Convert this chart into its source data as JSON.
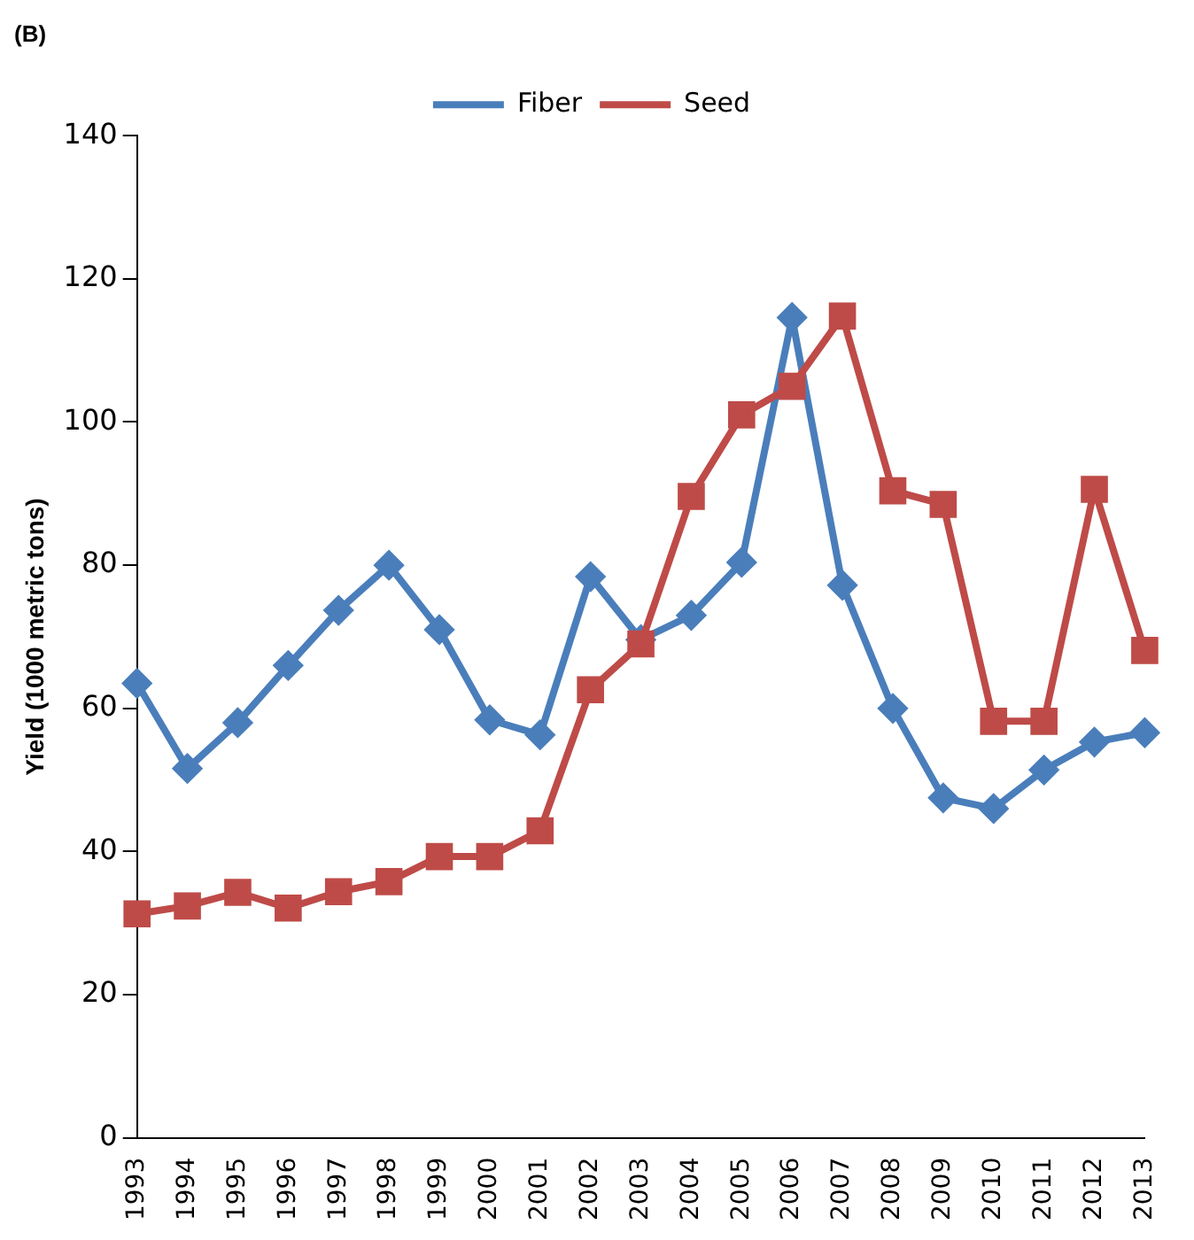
{
  "chart_data": {
    "type": "line",
    "title": "(B)",
    "ylabel": "Yield (1000 metric tons)",
    "categories": [
      "1993",
      "1994",
      "1995",
      "1996",
      "1997",
      "1998",
      "1999",
      "2000",
      "2001",
      "2002",
      "2003",
      "2004",
      "2005",
      "2006",
      "2007",
      "2008",
      "2009",
      "2010",
      "2011",
      "2012",
      "2013"
    ],
    "series": [
      {
        "name": "Fiber",
        "color": "#4a7ebb",
        "marker": "diamond",
        "values": [
          63.5,
          51.6,
          58,
          66,
          73.7,
          80,
          71,
          58.4,
          56.3,
          78.4,
          69.6,
          73,
          80.4,
          114.6,
          77.2,
          60,
          47.5,
          46,
          51.4,
          55.3,
          56.6
        ]
      },
      {
        "name": "Seed",
        "color": "#be4b48",
        "marker": "square",
        "values": [
          31.3,
          32.4,
          34.3,
          32.1,
          34.4,
          35.8,
          39.3,
          39.3,
          42.9,
          62.6,
          69,
          89.6,
          101,
          105,
          114.8,
          90.4,
          88.5,
          58.2,
          58.2,
          90.6,
          68.1
        ]
      }
    ],
    "ylim": [
      0,
      140
    ],
    "yticks": [
      0,
      20,
      40,
      60,
      80,
      100,
      120,
      140
    ],
    "grid": false,
    "legend": "top",
    "line_style": "solid"
  }
}
